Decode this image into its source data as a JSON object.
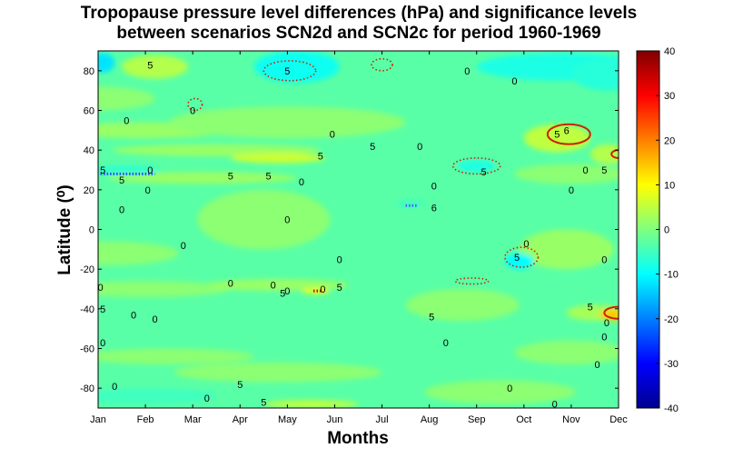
{
  "chart_data": {
    "type": "heatmap",
    "title": "Tropopause pressure level differences (hPa) and significance levels",
    "subtitle": "between scenarios SCN2d and SCN2c for period 1960-1969",
    "xlabel": "Months",
    "ylabel": "Latitude (⁰)",
    "x": [
      "Jan",
      "Feb",
      "Mar",
      "Apr",
      "May",
      "Jun",
      "Jul",
      "Aug",
      "Sep",
      "Oct",
      "Nov",
      "Dec"
    ],
    "xlim": [
      1,
      12
    ],
    "ylim": [
      -90,
      90
    ],
    "yticks": [
      80,
      60,
      40,
      20,
      0,
      -20,
      -40,
      -60,
      -80
    ],
    "colorbar": {
      "ticks": [
        40,
        30,
        20,
        10,
        0,
        -10,
        -20,
        -30,
        -40
      ],
      "range": [
        -40,
        40
      ],
      "colormap": "jet"
    },
    "background_value": -3,
    "regions": [
      {
        "month": 2.2,
        "lat": 82,
        "rx": 0.7,
        "ry": 6,
        "value": 4
      },
      {
        "month": 1.1,
        "lat": 84,
        "rx": 0.25,
        "ry": 5,
        "value": -12
      },
      {
        "month": 5.2,
        "lat": 82,
        "rx": 0.9,
        "ry": 8,
        "value": -9
      },
      {
        "month": 10.8,
        "lat": 82,
        "rx": 1.8,
        "ry": 7,
        "value": -8
      },
      {
        "month": 11.8,
        "lat": 78,
        "rx": 0.8,
        "ry": 8,
        "value": -7
      },
      {
        "month": 1.0,
        "lat": 66,
        "rx": 1.2,
        "ry": 6,
        "value": 1
      },
      {
        "month": 2.0,
        "lat": 50,
        "rx": 1.8,
        "ry": 4,
        "value": 2
      },
      {
        "month": 5.0,
        "lat": 54,
        "rx": 2.5,
        "ry": 8,
        "value": 1
      },
      {
        "month": 3.5,
        "lat": 40,
        "rx": 2.2,
        "ry": 3,
        "value": 2
      },
      {
        "month": 4.8,
        "lat": 36,
        "rx": 1.0,
        "ry": 2.5,
        "value": 6
      },
      {
        "month": 3.2,
        "lat": 26,
        "rx": 2.0,
        "ry": 3,
        "value": 2
      },
      {
        "month": 10.7,
        "lat": 46,
        "rx": 0.7,
        "ry": 7,
        "value": 5
      },
      {
        "month": 11.8,
        "lat": 38,
        "rx": 0.4,
        "ry": 5,
        "value": 4
      },
      {
        "month": 11.0,
        "lat": 28,
        "rx": 1.2,
        "ry": 5,
        "value": 1
      },
      {
        "month": 1.6,
        "lat": 30,
        "rx": 0.7,
        "ry": 2.5,
        "value": -6
      },
      {
        "month": 9.0,
        "lat": 32,
        "rx": 0.4,
        "ry": 3,
        "value": -8
      },
      {
        "month": 7.6,
        "lat": 13,
        "rx": 0.3,
        "ry": 2,
        "value": -5
      },
      {
        "month": 4.5,
        "lat": 5,
        "rx": 1.4,
        "ry": 15,
        "value": 1
      },
      {
        "month": 1.2,
        "lat": -12,
        "rx": 1.5,
        "ry": 6,
        "value": 1
      },
      {
        "month": 10.9,
        "lat": -10,
        "rx": 1.0,
        "ry": 10,
        "value": 2
      },
      {
        "month": 9.9,
        "lat": -16,
        "rx": 0.3,
        "ry": 4,
        "value": -10
      },
      {
        "month": 2.0,
        "lat": -30,
        "rx": 1.8,
        "ry": 4,
        "value": 1
      },
      {
        "month": 4.8,
        "lat": -28,
        "rx": 1.5,
        "ry": 3,
        "value": 2
      },
      {
        "month": 5.6,
        "lat": -31,
        "rx": 0.3,
        "ry": 1.5,
        "value": 8
      },
      {
        "month": 8.7,
        "lat": -38,
        "rx": 1.2,
        "ry": 8,
        "value": 1
      },
      {
        "month": 11.5,
        "lat": -42,
        "rx": 0.6,
        "ry": 4,
        "value": 3
      },
      {
        "month": 11.9,
        "lat": -43,
        "rx": 0.3,
        "ry": 3,
        "value": 14
      },
      {
        "month": 2.5,
        "lat": -64,
        "rx": 1.8,
        "ry": 4,
        "value": 1
      },
      {
        "month": 4.8,
        "lat": -72,
        "rx": 2.2,
        "ry": 5,
        "value": 1
      },
      {
        "month": 11.0,
        "lat": -62,
        "rx": 1.2,
        "ry": 6,
        "value": 1
      },
      {
        "month": 9.5,
        "lat": -82,
        "rx": 1.6,
        "ry": 6,
        "value": 1
      },
      {
        "month": 5.5,
        "lat": -88,
        "rx": 1.0,
        "ry": 2,
        "value": 5
      },
      {
        "month": 2.0,
        "lat": -84,
        "rx": 1.5,
        "ry": 4,
        "value": -5
      }
    ],
    "significance_contours": [
      {
        "month": 5.05,
        "lat": 80,
        "rx": 0.55,
        "ry": 5,
        "style": "dotted"
      },
      {
        "month": 3.05,
        "lat": 63,
        "rx": 0.15,
        "ry": 3,
        "style": "dotted"
      },
      {
        "month": 7.0,
        "lat": 83,
        "rx": 0.22,
        "ry": 3,
        "style": "dotted"
      },
      {
        "month": 10.95,
        "lat": 48,
        "rx": 0.45,
        "ry": 5,
        "style": "solid"
      },
      {
        "month": 9.0,
        "lat": 32,
        "rx": 0.5,
        "ry": 4,
        "style": "dotted"
      },
      {
        "month": 9.95,
        "lat": -14,
        "rx": 0.35,
        "ry": 5,
        "style": "dotted"
      },
      {
        "month": 8.9,
        "lat": -26,
        "rx": 0.35,
        "ry": 1.5,
        "style": "dotted"
      },
      {
        "month": 12.0,
        "lat": -42,
        "rx": 0.3,
        "ry": 3,
        "style": "solid"
      },
      {
        "month": 12.0,
        "lat": 38,
        "rx": 0.15,
        "ry": 2,
        "style": "solid"
      }
    ],
    "hatch_lines": [
      {
        "m1": 1.05,
        "m2": 2.2,
        "lat": 28,
        "color": "#2048ff"
      },
      {
        "m1": 5.55,
        "m2": 5.75,
        "lat": -31,
        "color": "#c01000"
      },
      {
        "m1": 7.5,
        "m2": 7.75,
        "lat": 12,
        "color": "#4060ff"
      }
    ],
    "contour_labels": [
      {
        "month": 2.1,
        "lat": 83,
        "text": "5"
      },
      {
        "month": 5.0,
        "lat": 80,
        "text": "5"
      },
      {
        "month": 8.8,
        "lat": 80,
        "text": "0"
      },
      {
        "month": 9.8,
        "lat": 75,
        "text": "0"
      },
      {
        "month": 3.0,
        "lat": 60,
        "text": "0"
      },
      {
        "month": 1.6,
        "lat": 55,
        "text": "0"
      },
      {
        "month": 5.95,
        "lat": 48,
        "text": "0"
      },
      {
        "month": 6.8,
        "lat": 42,
        "text": "5"
      },
      {
        "month": 7.8,
        "lat": 42,
        "text": "0"
      },
      {
        "month": 10.7,
        "lat": 48,
        "text": "5"
      },
      {
        "month": 10.9,
        "lat": 50,
        "text": "6"
      },
      {
        "month": 11.3,
        "lat": 30,
        "text": "0"
      },
      {
        "month": 11.7,
        "lat": 30,
        "text": "5"
      },
      {
        "month": 11.0,
        "lat": 20,
        "text": "0"
      },
      {
        "month": 1.1,
        "lat": 30,
        "text": "5"
      },
      {
        "month": 1.5,
        "lat": 25,
        "text": "5"
      },
      {
        "month": 2.1,
        "lat": 30,
        "text": "0"
      },
      {
        "month": 2.05,
        "lat": 20,
        "text": "0"
      },
      {
        "month": 1.5,
        "lat": 10,
        "text": "0"
      },
      {
        "month": 3.8,
        "lat": 27,
        "text": "5"
      },
      {
        "month": 4.6,
        "lat": 27,
        "text": "5"
      },
      {
        "month": 5.3,
        "lat": 24,
        "text": "0"
      },
      {
        "month": 5.7,
        "lat": 37,
        "text": "5"
      },
      {
        "month": 9.15,
        "lat": 29,
        "text": "5"
      },
      {
        "month": 8.1,
        "lat": 22,
        "text": "0"
      },
      {
        "month": 8.1,
        "lat": 11,
        "text": "6"
      },
      {
        "month": 5.0,
        "lat": 5,
        "text": "0"
      },
      {
        "month": 2.8,
        "lat": -8,
        "text": "0"
      },
      {
        "month": 6.1,
        "lat": -15,
        "text": "0"
      },
      {
        "month": 9.85,
        "lat": -14,
        "text": "5"
      },
      {
        "month": 10.05,
        "lat": -7,
        "text": "0"
      },
      {
        "month": 11.7,
        "lat": -15,
        "text": "0"
      },
      {
        "month": 1.05,
        "lat": -29,
        "text": "0"
      },
      {
        "month": 4.7,
        "lat": -28,
        "text": "0"
      },
      {
        "month": 4.9,
        "lat": -32,
        "text": "5"
      },
      {
        "month": 5.0,
        "lat": -31,
        "text": "0"
      },
      {
        "month": 5.75,
        "lat": -30,
        "text": "0"
      },
      {
        "month": 6.1,
        "lat": -29,
        "text": "5"
      },
      {
        "month": 3.8,
        "lat": -27,
        "text": "0"
      },
      {
        "month": 1.1,
        "lat": -40,
        "text": "5"
      },
      {
        "month": 1.75,
        "lat": -43,
        "text": "0"
      },
      {
        "month": 2.2,
        "lat": -45,
        "text": "0"
      },
      {
        "month": 8.05,
        "lat": -44,
        "text": "5"
      },
      {
        "month": 11.4,
        "lat": -39,
        "text": "5"
      },
      {
        "month": 11.75,
        "lat": -47,
        "text": "0"
      },
      {
        "month": 1.1,
        "lat": -57,
        "text": "0"
      },
      {
        "month": 8.35,
        "lat": -57,
        "text": "0"
      },
      {
        "month": 11.7,
        "lat": -54,
        "text": "0"
      },
      {
        "month": 11.55,
        "lat": -68,
        "text": "0"
      },
      {
        "month": 1.35,
        "lat": -79,
        "text": "0"
      },
      {
        "month": 4.0,
        "lat": -78,
        "text": "5"
      },
      {
        "month": 3.3,
        "lat": -85,
        "text": "0"
      },
      {
        "month": 4.5,
        "lat": -87,
        "text": "5"
      },
      {
        "month": 9.7,
        "lat": -80,
        "text": "0"
      },
      {
        "month": 10.65,
        "lat": -88,
        "text": "0"
      }
    ]
  }
}
